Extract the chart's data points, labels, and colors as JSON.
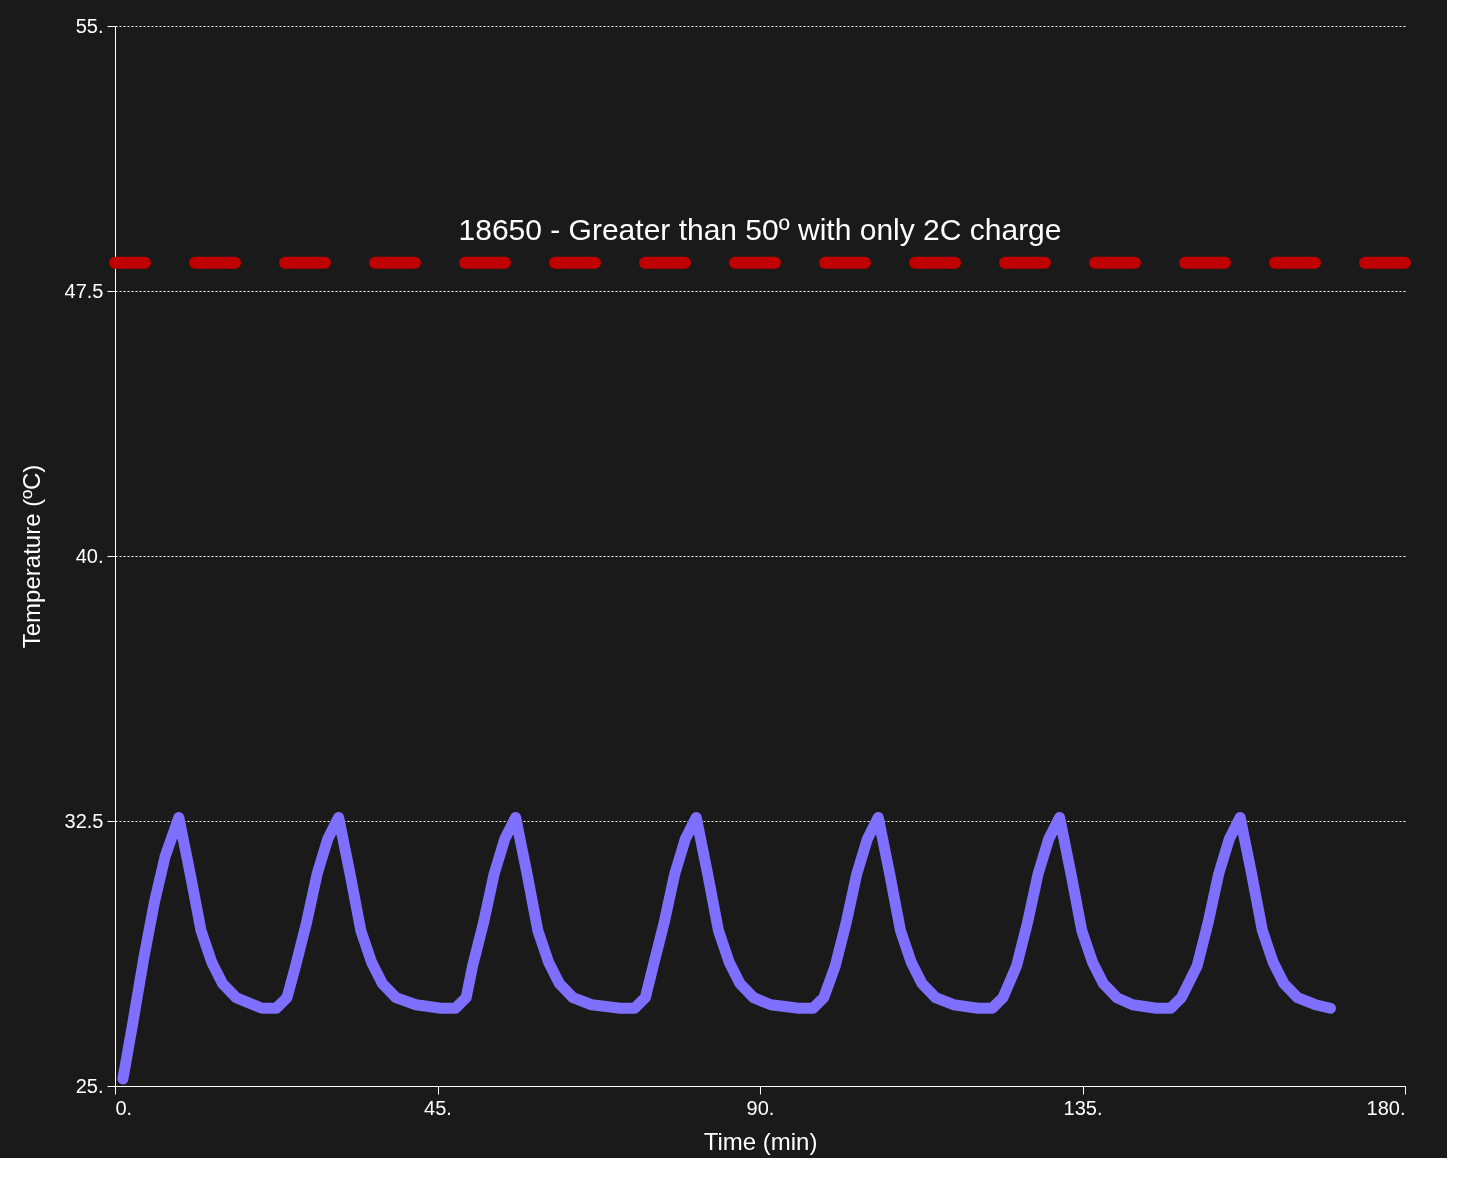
{
  "chart_data": {
    "type": "line",
    "xlabel": "Time (min)",
    "ylabel": "Temperature (ºC)",
    "xlim": [
      0,
      180
    ],
    "ylim": [
      25,
      55
    ],
    "xticks": [
      {
        "value": 0,
        "label": "0."
      },
      {
        "value": 45,
        "label": "45."
      },
      {
        "value": 90,
        "label": "90."
      },
      {
        "value": 135,
        "label": "135."
      },
      {
        "value": 180,
        "label": "180."
      }
    ],
    "yticks": [
      {
        "value": 25,
        "label": "25."
      },
      32.5,
      {
        "value": 40,
        "label": "40."
      },
      47.5,
      {
        "value": 55,
        "label": "55."
      }
    ],
    "grid": "y",
    "line_style": "solid",
    "marker": "none",
    "ref_lines": [
      {
        "axis": "y",
        "value": 48.3,
        "label": "18650 - Greater than 50º with only 2C charge",
        "color": "#c00000",
        "line_style": "dashed"
      }
    ],
    "series": [
      {
        "color": "#7f6fff",
        "x": [
          1.1,
          2.5,
          4,
          5.5,
          7,
          8.9,
          10.5,
          12.0,
          13.5,
          15.0,
          16.9,
          20.5,
          22.5,
          24.0,
          25.2,
          26.7,
          28.2,
          29.7,
          31.2,
          32.8,
          34.3,
          35.8,
          37.3,
          39.2,
          42,
          45.5,
          47.5,
          49,
          49.9,
          51.4,
          52.9,
          54.4,
          55.9,
          57.5,
          59.0,
          60.5,
          62.0,
          63.9,
          66.5,
          70.5,
          72.5,
          74.0,
          75.1,
          76.6,
          78.1,
          79.6,
          81.1,
          82.7,
          84.2,
          85.7,
          87.2,
          89.1,
          91.5,
          95.4,
          97.4,
          98.9,
          100.5,
          102.0,
          103.5,
          105.0,
          106.5,
          108.1,
          109.6,
          111.1,
          112.6,
          114.5,
          117,
          120.4,
          122.4,
          123.9,
          125.8,
          127.3,
          128.8,
          130.3,
          131.8,
          133.4,
          134.9,
          136.4,
          137.9,
          139.8,
          142,
          145.3,
          147.3,
          148.8,
          151,
          152.5,
          154,
          155.5,
          157,
          158.6,
          160.1,
          161.6,
          163.1,
          165,
          167.5,
          169.6
        ],
        "values": [
          25.2,
          26.8,
          28.6,
          30.2,
          31.5,
          32.6,
          31.0,
          29.4,
          28.5,
          27.9,
          27.5,
          27.2,
          27.2,
          27.5,
          28.4,
          29.6,
          31.0,
          32.0,
          32.6,
          31.0,
          29.4,
          28.5,
          27.9,
          27.5,
          27.3,
          27.2,
          27.2,
          27.5,
          28.4,
          29.6,
          31.0,
          32.0,
          32.6,
          31.0,
          29.4,
          28.5,
          27.9,
          27.5,
          27.3,
          27.2,
          27.2,
          27.5,
          28.4,
          29.6,
          31.0,
          32.0,
          32.6,
          31.0,
          29.4,
          28.5,
          27.9,
          27.5,
          27.3,
          27.2,
          27.2,
          27.5,
          28.4,
          29.6,
          31.0,
          32.0,
          32.6,
          31.0,
          29.4,
          28.5,
          27.9,
          27.5,
          27.3,
          27.2,
          27.2,
          27.5,
          28.4,
          29.6,
          31.0,
          32.0,
          32.6,
          31.0,
          29.4,
          28.5,
          27.9,
          27.5,
          27.3,
          27.2,
          27.2,
          27.5,
          28.4,
          29.6,
          31.0,
          32.0,
          32.6,
          31.0,
          29.4,
          28.5,
          27.9,
          27.5,
          27.3,
          27.2
        ]
      }
    ]
  }
}
